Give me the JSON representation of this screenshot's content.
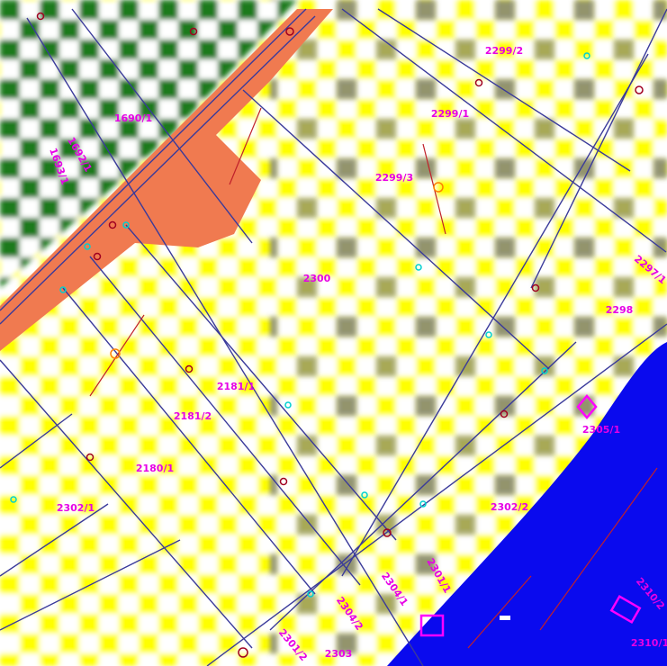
{
  "map": {
    "parcels": [
      {
        "label": "2299/2"
      },
      {
        "label": "2299/1"
      },
      {
        "label": "2299/3"
      },
      {
        "label": "2300"
      },
      {
        "label": "2298"
      },
      {
        "label": "2297/1"
      },
      {
        "label": "2305/1"
      },
      {
        "label": "2181/1"
      },
      {
        "label": "2181/2"
      },
      {
        "label": "2180/1"
      },
      {
        "label": "2302/1"
      },
      {
        "label": "2302/2"
      },
      {
        "label": "2304/1"
      },
      {
        "label": "2304/2"
      },
      {
        "label": "2303"
      },
      {
        "label": "2301/2"
      },
      {
        "label": "2301/1"
      },
      {
        "label": "1693/1"
      },
      {
        "label": "1692/1"
      },
      {
        "label": "1690/1"
      },
      {
        "label": "2310/1"
      },
      {
        "label": "2310/2"
      }
    ]
  }
}
